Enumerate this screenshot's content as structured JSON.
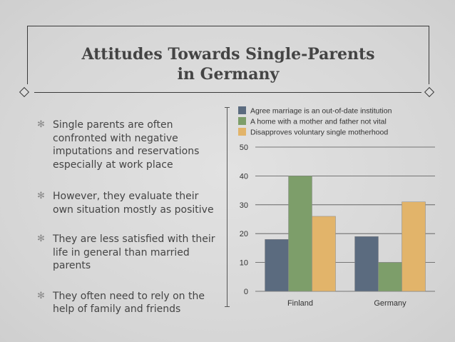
{
  "slide": {
    "title_line1": "Attitudes Towards Single-Parents",
    "title_line2": "in Germany",
    "bullets": [
      "Single parents are often confronted with negative imputations and reservations especially at work place",
      "However, they evaluate their own situation mostly as positive",
      "They are less satisfied with their life in general than married parents",
      "They often need to rely on the help of family and friends"
    ]
  },
  "chart_data": {
    "type": "bar",
    "categories": [
      "Finland",
      "Germany"
    ],
    "series": [
      {
        "name": "Agree marriage is an out-of-date institution",
        "values": [
          18,
          19
        ],
        "color": "#5b6b7f"
      },
      {
        "name": "A home with a mother and father not vital",
        "values": [
          40,
          10
        ],
        "color": "#7d9e6a"
      },
      {
        "name": "Disapproves voluntary single motherhood",
        "values": [
          26,
          31
        ],
        "color": "#e2b46a"
      }
    ],
    "ylim": [
      0,
      50
    ],
    "yticks": [
      0,
      10,
      20,
      30,
      40,
      50
    ],
    "grid": true,
    "legend_position": "top"
  }
}
